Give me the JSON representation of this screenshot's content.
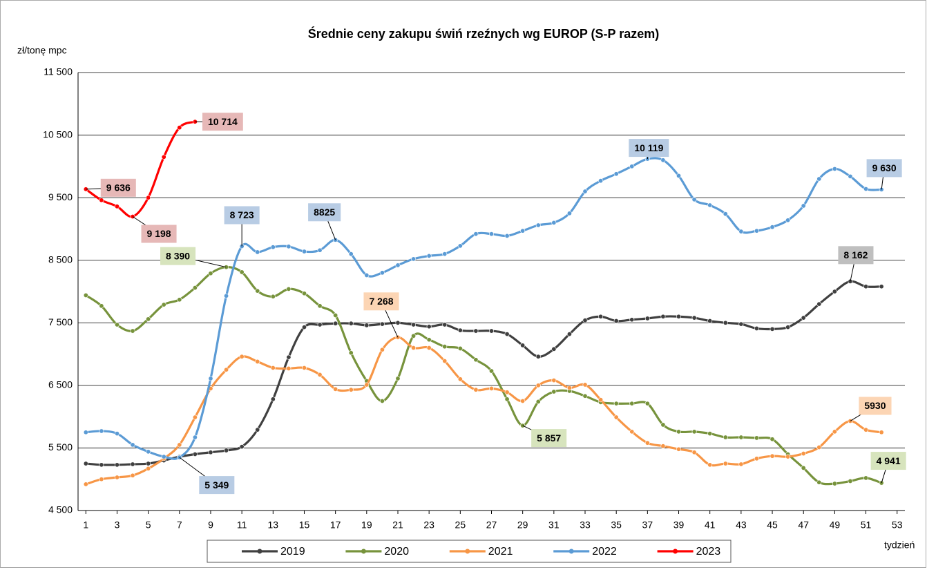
{
  "chart_data": {
    "type": "line",
    "title": "Średnie ceny zakupu świń rzeźnych wg EUROP (S-P razem)",
    "y_label": "zł/tonę mpc",
    "x_label": "tydzień",
    "x": [
      1,
      2,
      3,
      4,
      5,
      6,
      7,
      8,
      9,
      10,
      11,
      12,
      13,
      14,
      15,
      16,
      17,
      18,
      19,
      20,
      21,
      22,
      23,
      24,
      25,
      26,
      27,
      28,
      29,
      30,
      31,
      32,
      33,
      34,
      35,
      36,
      37,
      38,
      39,
      40,
      41,
      42,
      43,
      44,
      45,
      46,
      47,
      48,
      49,
      50,
      51,
      52
    ],
    "xlim": [
      0.5,
      53.5
    ],
    "xticks": [
      1,
      3,
      5,
      7,
      9,
      11,
      13,
      15,
      17,
      19,
      21,
      23,
      25,
      27,
      29,
      31,
      33,
      35,
      37,
      39,
      41,
      43,
      45,
      47,
      49,
      51,
      53
    ],
    "ylim": [
      4500,
      11500
    ],
    "yticks": [
      {
        "value": 4500,
        "label": "4 500"
      },
      {
        "value": 5500,
        "label": "5 500"
      },
      {
        "value": 6500,
        "label": "6 500"
      },
      {
        "value": 7500,
        "label": "7 500"
      },
      {
        "value": 8500,
        "label": "8 500"
      },
      {
        "value": 9500,
        "label": "9 500"
      },
      {
        "value": 10500,
        "label": "10 500"
      },
      {
        "value": 11500,
        "label": "11 500"
      }
    ],
    "grid": true,
    "legend": "bottom",
    "series": [
      {
        "name": "2019",
        "color": "#404040",
        "label_color": "#bfbfbf",
        "values": [
          5250,
          5230,
          5230,
          5240,
          5250,
          5300,
          5360,
          5400,
          5430,
          5460,
          5520,
          5790,
          6280,
          6950,
          7430,
          7470,
          7490,
          7490,
          7460,
          7480,
          7500,
          7470,
          7440,
          7470,
          7380,
          7370,
          7370,
          7320,
          7140,
          6960,
          7080,
          7320,
          7540,
          7600,
          7530,
          7550,
          7570,
          7600,
          7600,
          7580,
          7530,
          7500,
          7480,
          7410,
          7400,
          7430,
          7580,
          7800,
          8000,
          8162,
          8080,
          8080
        ],
        "value_labels": [
          null,
          null,
          null,
          null,
          null,
          null,
          null,
          null,
          null,
          null,
          null,
          null,
          null,
          null,
          null,
          null,
          null,
          null,
          null,
          null,
          null,
          null,
          null,
          null,
          null,
          null,
          null,
          null,
          null,
          null,
          null,
          null,
          null,
          null,
          null,
          null,
          null,
          null,
          null,
          null,
          null,
          null,
          null,
          null,
          null,
          null,
          null,
          null,
          null,
          "8 162",
          null,
          null
        ]
      },
      {
        "name": "2020",
        "color": "#77933c",
        "label_color": "#d7e4bd",
        "values": [
          7940,
          7770,
          7470,
          7370,
          7560,
          7790,
          7870,
          8060,
          8290,
          8390,
          8310,
          8010,
          7920,
          8040,
          7970,
          7770,
          7620,
          7020,
          6570,
          6250,
          6610,
          7290,
          7230,
          7120,
          7090,
          6910,
          6730,
          6280,
          5857,
          6240,
          6400,
          6410,
          6330,
          6230,
          6210,
          6210,
          6210,
          5870,
          5760,
          5760,
          5730,
          5670,
          5670,
          5660,
          5640,
          5400,
          5180,
          4950,
          4930,
          4970,
          5020,
          4941
        ],
        "value_labels": [
          null,
          null,
          null,
          null,
          null,
          null,
          null,
          null,
          null,
          "8 390",
          null,
          null,
          null,
          null,
          null,
          null,
          null,
          null,
          null,
          null,
          null,
          null,
          null,
          null,
          null,
          null,
          null,
          null,
          "5 857",
          null,
          null,
          null,
          null,
          null,
          null,
          null,
          null,
          null,
          null,
          null,
          null,
          null,
          null,
          null,
          null,
          null,
          null,
          null,
          null,
          null,
          null,
          "4 941"
        ]
      },
      {
        "name": "2021",
        "color": "#f79646",
        "label_color": "#fcd5b4",
        "values": [
          4920,
          5000,
          5030,
          5060,
          5170,
          5330,
          5550,
          5990,
          6450,
          6750,
          6960,
          6880,
          6780,
          6770,
          6780,
          6670,
          6440,
          6430,
          6510,
          7070,
          7268,
          7100,
          7100,
          6890,
          6600,
          6430,
          6450,
          6390,
          6250,
          6500,
          6580,
          6460,
          6510,
          6270,
          5990,
          5760,
          5580,
          5530,
          5480,
          5430,
          5230,
          5250,
          5240,
          5330,
          5370,
          5360,
          5410,
          5510,
          5760,
          5930,
          5790,
          5750
        ],
        "value_labels": [
          null,
          null,
          null,
          null,
          null,
          null,
          null,
          null,
          null,
          null,
          null,
          null,
          null,
          null,
          null,
          null,
          null,
          null,
          null,
          null,
          "7 268",
          null,
          null,
          null,
          null,
          null,
          null,
          null,
          null,
          null,
          null,
          null,
          null,
          null,
          null,
          null,
          null,
          null,
          null,
          null,
          null,
          null,
          null,
          null,
          null,
          null,
          null,
          null,
          null,
          "5930",
          null,
          null
        ]
      },
      {
        "name": "2022",
        "color": "#5b9bd5",
        "label_color": "#b8cce4",
        "values": [
          5750,
          5770,
          5730,
          5550,
          5440,
          5360,
          5349,
          5670,
          6610,
          7930,
          8723,
          8630,
          8710,
          8720,
          8640,
          8660,
          8825,
          8600,
          8260,
          8300,
          8420,
          8520,
          8570,
          8600,
          8730,
          8920,
          8920,
          8890,
          8970,
          9060,
          9100,
          9250,
          9600,
          9770,
          9880,
          10000,
          10119,
          10100,
          9850,
          9470,
          9380,
          9240,
          8960,
          8970,
          9030,
          9140,
          9370,
          9800,
          9960,
          9840,
          9640,
          9630
        ],
        "value_labels": [
          null,
          null,
          null,
          null,
          null,
          null,
          "5 349",
          null,
          null,
          null,
          "8 723",
          null,
          null,
          null,
          null,
          null,
          "8825",
          null,
          null,
          null,
          null,
          null,
          null,
          null,
          null,
          null,
          null,
          null,
          null,
          null,
          null,
          null,
          null,
          null,
          null,
          null,
          "10 119",
          null,
          null,
          null,
          null,
          null,
          null,
          null,
          null,
          null,
          null,
          null,
          null,
          null,
          null,
          "9 630"
        ]
      },
      {
        "name": "2023",
        "color": "#ff0000",
        "label_color": "#e6b8b7",
        "values": [
          9636,
          9460,
          9360,
          9198,
          9500,
          10150,
          10620,
          10714,
          null,
          null,
          null,
          null,
          null,
          null,
          null,
          null,
          null,
          null,
          null,
          null,
          null,
          null,
          null,
          null,
          null,
          null,
          null,
          null,
          null,
          null,
          null,
          null,
          null,
          null,
          null,
          null,
          null,
          null,
          null,
          null,
          null,
          null,
          null,
          null,
          null,
          null,
          null,
          null,
          null,
          null,
          null,
          null
        ],
        "value_labels": [
          "9 636",
          null,
          null,
          "9 198",
          null,
          null,
          null,
          "10 714",
          null,
          null,
          null,
          null,
          null,
          null,
          null,
          null,
          null,
          null,
          null,
          null,
          null,
          null,
          null,
          null,
          null,
          null,
          null,
          null,
          null,
          null,
          null,
          null,
          null,
          null,
          null,
          null,
          null,
          null,
          null,
          null,
          null,
          null,
          null,
          null,
          null,
          null,
          null,
          null,
          null,
          null,
          null,
          null
        ]
      }
    ]
  }
}
